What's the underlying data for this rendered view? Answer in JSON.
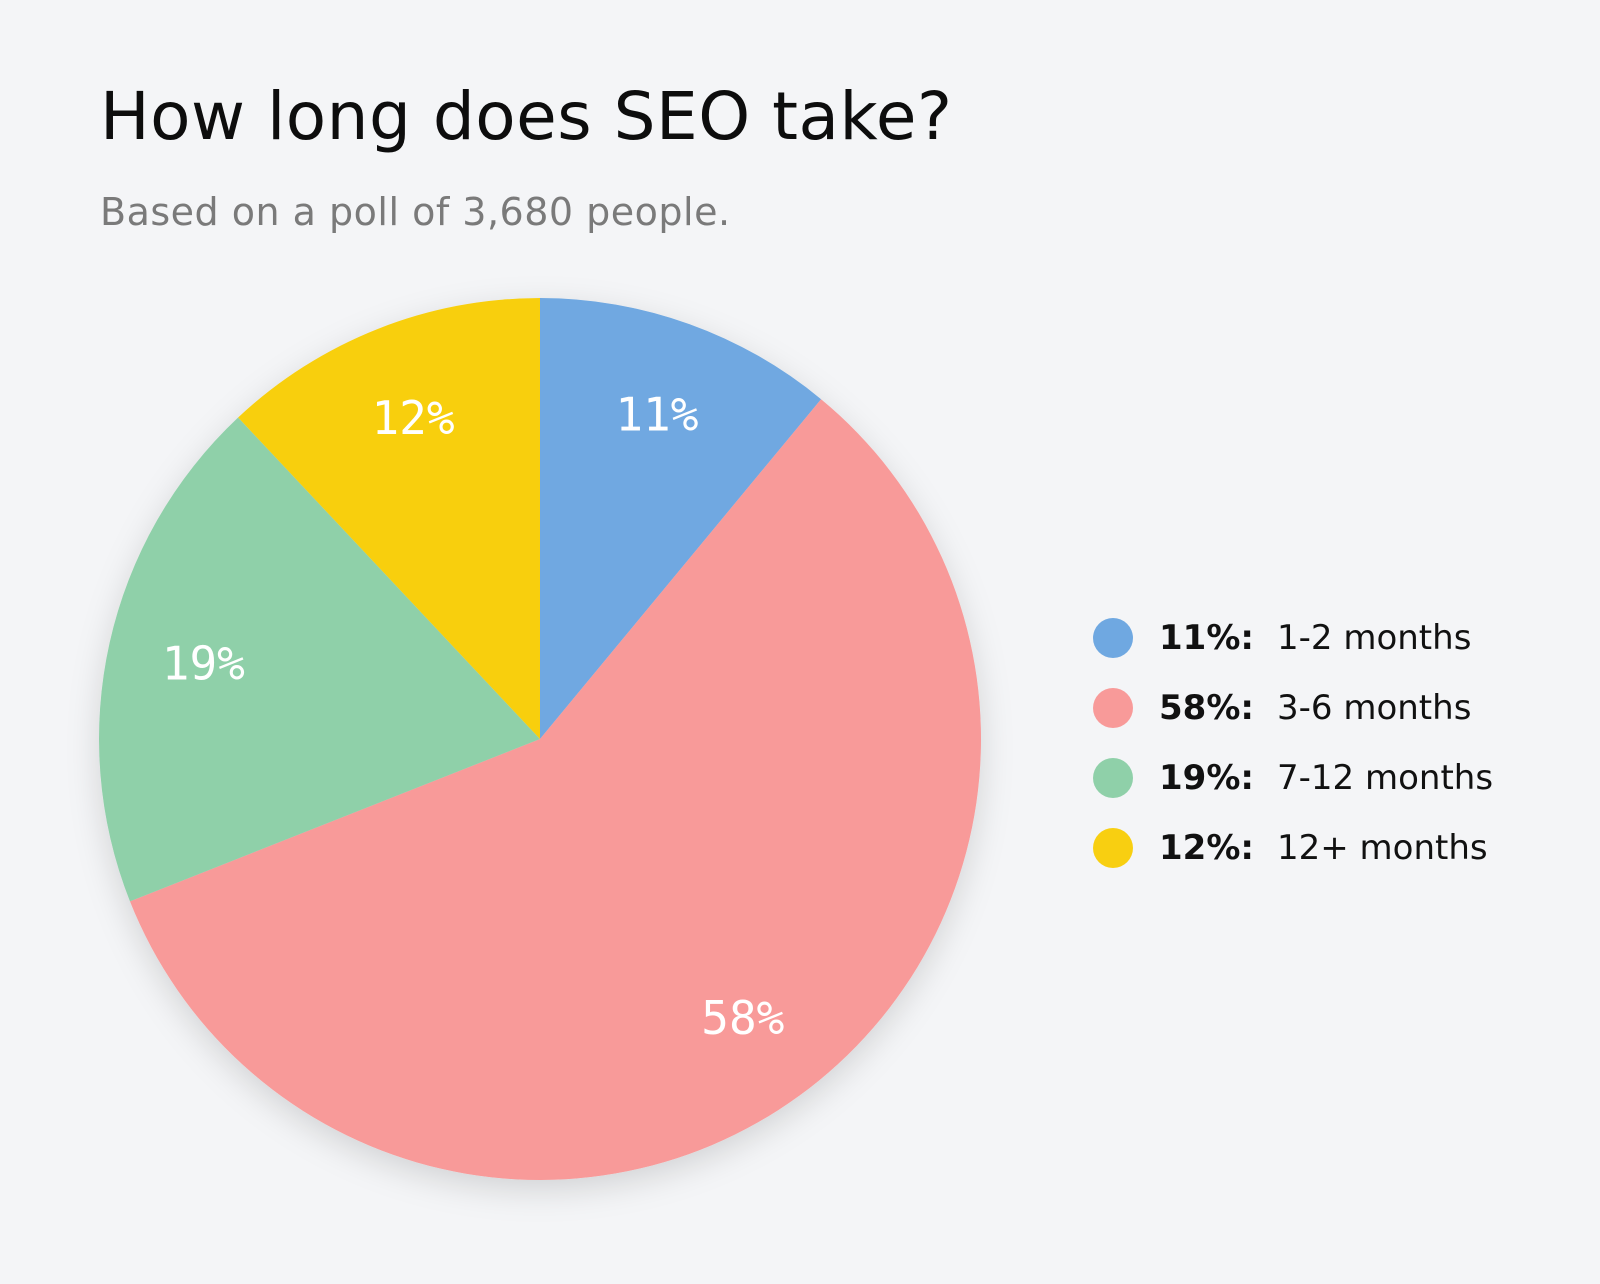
{
  "chart_data": {
    "type": "pie",
    "title": "How long does SEO take?",
    "subtitle": "Based on a poll of 3,680 people.",
    "slices": [
      {
        "value": 11,
        "label": "11%",
        "legend_pct": "11%:",
        "legend_text": "1-2 months",
        "color": "#6fa8e1"
      },
      {
        "value": 58,
        "label": "58%",
        "legend_pct": "58%:",
        "legend_text": "3-6 months",
        "color": "#f89a99"
      },
      {
        "value": 19,
        "label": "19%",
        "legend_pct": "19%:",
        "legend_text": "7-12 months",
        "color": "#8fd0a9"
      },
      {
        "value": 12,
        "label": "12%",
        "legend_pct": "12%:",
        "legend_text": "12+ months",
        "color": "#f8cf11"
      }
    ],
    "start_angle": "12 o'clock",
    "direction": "clockwise",
    "legend_placement": "right"
  }
}
